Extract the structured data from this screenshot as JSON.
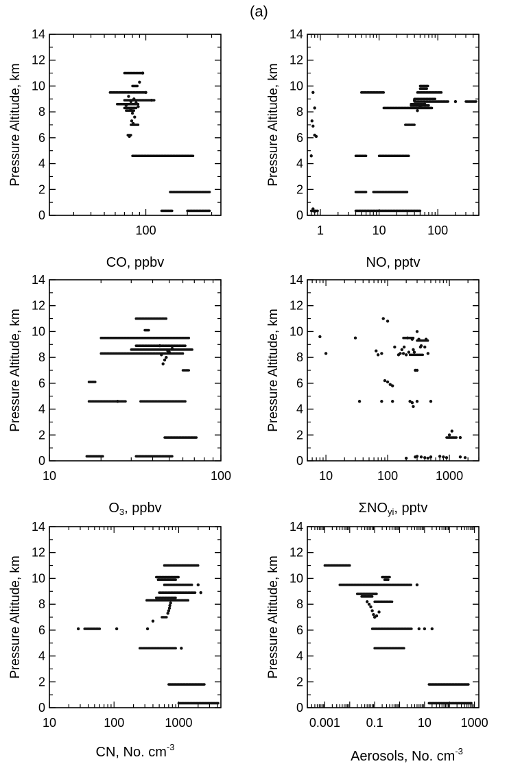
{
  "figure": {
    "panel_label": "(a)"
  },
  "chart_data": [
    {
      "id": "co",
      "type": "scatter",
      "xscale": "log",
      "xlim": [
        20,
        350
      ],
      "ylabel": "Pressure Altitude, km",
      "ylim": [
        0,
        14
      ],
      "yticks": [
        0,
        2,
        4,
        6,
        8,
        10,
        12,
        14
      ],
      "xticks": [
        100
      ],
      "xlabel": {
        "main": "CO,  ppbv",
        "sub": "",
        "sup": ""
      },
      "segments": [
        [
          9.5,
          55,
          100
        ],
        [
          8.9,
          70,
          115
        ],
        [
          8.6,
          62,
          88
        ],
        [
          8.3,
          70,
          85
        ],
        [
          8.1,
          72,
          82
        ],
        [
          11.0,
          70,
          95
        ],
        [
          10.0,
          80,
          88
        ],
        [
          7.0,
          78,
          88
        ],
        [
          6.2,
          74,
          78
        ],
        [
          4.6,
          80,
          220
        ],
        [
          1.8,
          150,
          290
        ],
        [
          0.35,
          130,
          155
        ],
        [
          0.35,
          200,
          290
        ]
      ],
      "points": [
        [
          75,
          9.2
        ],
        [
          82,
          9.0
        ],
        [
          78,
          8.8
        ],
        [
          85,
          8.7
        ],
        [
          72,
          8.5
        ],
        [
          88,
          8.4
        ],
        [
          78,
          8.2
        ],
        [
          80,
          7.9
        ],
        [
          83,
          7.6
        ],
        [
          79,
          7.3
        ],
        [
          81,
          7.1
        ],
        [
          76,
          6.1
        ],
        [
          90,
          10.3
        ],
        [
          95,
          11.0
        ],
        [
          100,
          9.5
        ],
        [
          110,
          8.9
        ]
      ]
    },
    {
      "id": "no",
      "type": "scatter",
      "xscale": "log",
      "xlim": [
        0.6,
        500
      ],
      "ylabel": "Pressure Altitude, km",
      "ylim": [
        0,
        14
      ],
      "yticks": [
        0,
        2,
        4,
        6,
        8,
        10,
        12,
        14
      ],
      "xticks": [
        1,
        10,
        100
      ],
      "xlabel": {
        "main": "NO,  pptv",
        "sub": "",
        "sup": ""
      },
      "segments": [
        [
          9.5,
          5,
          12
        ],
        [
          9.5,
          45,
          115
        ],
        [
          9.0,
          40,
          90
        ],
        [
          8.8,
          40,
          150
        ],
        [
          8.3,
          12,
          80
        ],
        [
          8.5,
          35,
          70
        ],
        [
          8.6,
          35,
          60
        ],
        [
          7.0,
          28,
          40
        ],
        [
          10.0,
          50,
          70
        ],
        [
          9.8,
          50,
          65
        ],
        [
          4.6,
          4,
          6
        ],
        [
          4.6,
          10,
          32
        ],
        [
          1.8,
          4,
          6
        ],
        [
          1.8,
          8,
          30
        ],
        [
          0.35,
          4,
          50
        ],
        [
          0.35,
          0.7,
          0.9
        ],
        [
          8.8,
          300,
          450
        ]
      ],
      "points": [
        [
          0.75,
          9.5
        ],
        [
          0.8,
          8.3
        ],
        [
          0.72,
          7.3
        ],
        [
          0.75,
          6.9
        ],
        [
          0.8,
          6.2
        ],
        [
          0.85,
          6.1
        ],
        [
          0.7,
          4.6
        ],
        [
          0.75,
          0.5
        ],
        [
          0.8,
          0.3
        ],
        [
          40,
          8.9
        ],
        [
          50,
          8.4
        ],
        [
          45,
          8.1
        ],
        [
          60,
          8.6
        ],
        [
          200,
          8.8
        ]
      ]
    },
    {
      "id": "o3",
      "type": "scatter",
      "xscale": "log",
      "xlim": [
        10,
        100
      ],
      "ylabel": "Pressure Altitude, km",
      "ylim": [
        0,
        14
      ],
      "yticks": [
        0,
        2,
        4,
        6,
        8,
        10,
        12,
        14
      ],
      "xticks": [
        10,
        100
      ],
      "xlabel": {
        "main": "O",
        "sub": "3",
        "sup": "",
        "after": ",  ppbv"
      },
      "segments": [
        [
          9.5,
          20,
          65
        ],
        [
          8.9,
          32,
          62
        ],
        [
          8.6,
          30,
          68
        ],
        [
          8.3,
          20,
          60
        ],
        [
          11.0,
          32,
          48
        ],
        [
          10.1,
          36,
          38
        ],
        [
          7.0,
          60,
          65
        ],
        [
          6.1,
          17,
          18.5
        ],
        [
          4.6,
          17,
          28
        ],
        [
          4.6,
          34,
          62
        ],
        [
          1.8,
          47,
          72
        ],
        [
          0.35,
          16.5,
          20.5
        ],
        [
          0.35,
          32,
          52
        ]
      ],
      "points": [
        [
          45,
          8.2
        ],
        [
          48,
          8.0
        ],
        [
          47,
          7.8
        ],
        [
          46,
          7.5
        ],
        [
          50,
          8.4
        ],
        [
          52,
          8.7
        ],
        [
          44,
          8.9
        ],
        [
          49,
          8.5
        ],
        [
          25,
          4.6
        ]
      ]
    },
    {
      "id": "noy",
      "type": "scatter",
      "xscale": "log",
      "xlim": [
        5,
        3000
      ],
      "ylabel": "Pressure Altitude, km",
      "ylim": [
        0,
        14
      ],
      "yticks": [
        0,
        2,
        4,
        6,
        8,
        10,
        12,
        14
      ],
      "xticks": [
        10,
        100,
        1000
      ],
      "xlabel": {
        "main": "ΣNO",
        "sub": "yi",
        "sup": "",
        "after": ",  pptv"
      },
      "segments": [
        [
          9.5,
          180,
          260
        ],
        [
          9.3,
          300,
          450
        ],
        [
          8.2,
          230,
          370
        ],
        [
          1.8,
          900,
          1300
        ]
      ],
      "points": [
        [
          8,
          9.6
        ],
        [
          10,
          8.3
        ],
        [
          30,
          9.5
        ],
        [
          35,
          4.6
        ],
        [
          65,
          8.5
        ],
        [
          70,
          8.2
        ],
        [
          80,
          8.3
        ],
        [
          85,
          11.0
        ],
        [
          100,
          10.8
        ],
        [
          90,
          6.2
        ],
        [
          100,
          6.1
        ],
        [
          110,
          5.9
        ],
        [
          120,
          5.8
        ],
        [
          80,
          4.6
        ],
        [
          120,
          4.6
        ],
        [
          130,
          8.8
        ],
        [
          150,
          8.2
        ],
        [
          160,
          8.3
        ],
        [
          170,
          8.6
        ],
        [
          185,
          8.8
        ],
        [
          200,
          8.2
        ],
        [
          210,
          9.5
        ],
        [
          250,
          9.4
        ],
        [
          260,
          8.6
        ],
        [
          270,
          8.4
        ],
        [
          280,
          7.0
        ],
        [
          300,
          7.0
        ],
        [
          230,
          4.6
        ],
        [
          250,
          4.5
        ],
        [
          260,
          4.2
        ],
        [
          300,
          4.6
        ],
        [
          320,
          9.4
        ],
        [
          340,
          8.8
        ],
        [
          350,
          8.9
        ],
        [
          400,
          8.8
        ],
        [
          420,
          9.4
        ],
        [
          450,
          8.3
        ],
        [
          500,
          4.6
        ],
        [
          200,
          0.2
        ],
        [
          280,
          0.3
        ],
        [
          300,
          0.35
        ],
        [
          350,
          0.3
        ],
        [
          400,
          0.25
        ],
        [
          450,
          0.2
        ],
        [
          500,
          0.3
        ],
        [
          700,
          0.35
        ],
        [
          800,
          0.3
        ],
        [
          900,
          0.25
        ],
        [
          1000,
          2.0
        ],
        [
          1100,
          2.3
        ],
        [
          1500,
          0.3
        ],
        [
          1800,
          0.25
        ],
        [
          1500,
          1.8
        ],
        [
          180,
          8.3
        ],
        [
          220,
          8.4
        ],
        [
          300,
          10.0
        ]
      ]
    },
    {
      "id": "cn",
      "type": "scatter",
      "xscale": "log",
      "xlim": [
        10,
        4500
      ],
      "ylabel": "Pressure Altitude, km",
      "ylim": [
        0,
        14
      ],
      "yticks": [
        0,
        2,
        4,
        6,
        8,
        10,
        12,
        14
      ],
      "xticks": [
        10,
        100,
        1000
      ],
      "xlabel": {
        "main": "CN,  No. cm",
        "sub": "",
        "sup": "-3"
      },
      "segments": [
        [
          11.0,
          600,
          2000
        ],
        [
          10.1,
          450,
          1000
        ],
        [
          9.9,
          480,
          900
        ],
        [
          9.5,
          600,
          1600
        ],
        [
          8.9,
          500,
          1800
        ],
        [
          8.5,
          450,
          900
        ],
        [
          8.3,
          320,
          1400
        ],
        [
          7.0,
          550,
          650
        ],
        [
          6.1,
          35,
          60
        ],
        [
          4.6,
          250,
          900
        ],
        [
          1.8,
          700,
          2500
        ],
        [
          0.35,
          1000,
          4200
        ]
      ],
      "points": [
        [
          28,
          6.1
        ],
        [
          110,
          6.1
        ],
        [
          330,
          6.1
        ],
        [
          400,
          6.7
        ],
        [
          700,
          7.5
        ],
        [
          720,
          7.7
        ],
        [
          730,
          7.9
        ],
        [
          750,
          8.1
        ],
        [
          680,
          7.3
        ],
        [
          1100,
          4.6
        ],
        [
          2200,
          8.9
        ],
        [
          2000,
          9.5
        ]
      ]
    },
    {
      "id": "aer",
      "type": "scatter",
      "xscale": "log",
      "xlim": [
        0.0002,
        1500
      ],
      "ylabel": "Pressure Altitude, km",
      "ylim": [
        0,
        14
      ],
      "yticks": [
        0,
        2,
        4,
        6,
        8,
        10,
        12,
        14
      ],
      "xticks": [
        0.001,
        0.1,
        10,
        1000
      ],
      "xlabel": {
        "main": "Aerosols,  No. cm",
        "sub": "",
        "sup": "-3"
      },
      "segments": [
        [
          11.0,
          0.001,
          0.01
        ],
        [
          9.5,
          0.004,
          3
        ],
        [
          8.8,
          0.02,
          0.12
        ],
        [
          8.6,
          0.03,
          0.08
        ],
        [
          8.2,
          0.1,
          0.5
        ],
        [
          10.1,
          0.2,
          0.4
        ],
        [
          9.9,
          0.25,
          0.35
        ],
        [
          6.1,
          0.08,
          3
        ],
        [
          4.6,
          0.1,
          1.5
        ],
        [
          1.8,
          15,
          600
        ],
        [
          0.35,
          15,
          800
        ]
      ],
      "points": [
        [
          0.05,
          8.2
        ],
        [
          0.06,
          8.0
        ],
        [
          0.07,
          7.8
        ],
        [
          0.08,
          7.5
        ],
        [
          0.09,
          7.2
        ],
        [
          0.1,
          7.0
        ],
        [
          0.12,
          7.1
        ],
        [
          0.15,
          7.4
        ],
        [
          5,
          9.5
        ],
        [
          6,
          6.1
        ],
        [
          10,
          6.1
        ],
        [
          20,
          6.1
        ]
      ]
    }
  ]
}
